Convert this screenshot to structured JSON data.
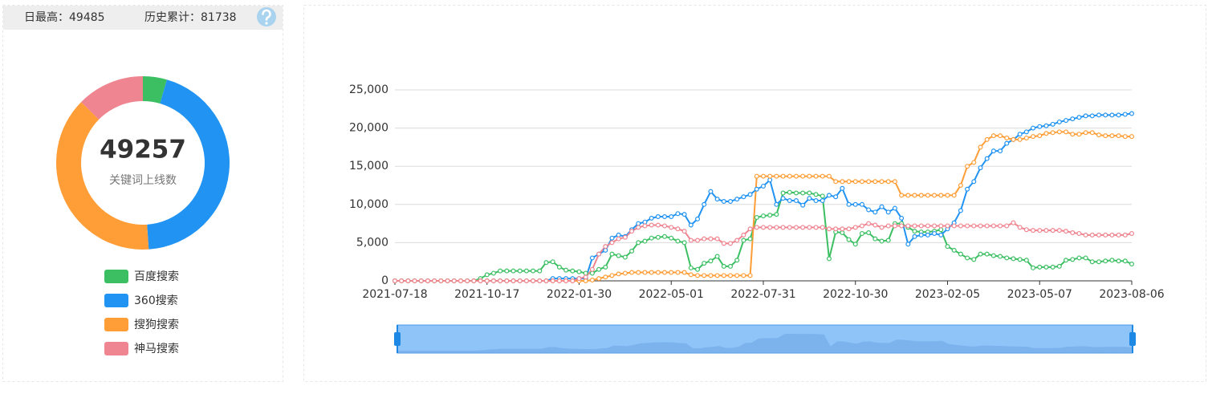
{
  "stats": [
    {
      "label": "日最高：",
      "value": 49485
    },
    {
      "label": "历史累计：",
      "value": 81738
    }
  ],
  "chart_data": [
    {
      "type": "pie",
      "donut": true,
      "center_value": 49257,
      "center_label": "关键词上线数",
      "categories": [
        "百度搜索",
        "360搜索",
        "搜狗搜索",
        "神马搜索"
      ],
      "values": [
        2200,
        21900,
        18950,
        6207
      ],
      "colors": [
        "#3cbf63",
        "#2193f2",
        "#ff9d36",
        "#ef8590"
      ]
    },
    {
      "type": "line",
      "categories": [
        "2021-07-18",
        null,
        null,
        null,
        null,
        null,
        null,
        null,
        null,
        null,
        null,
        null,
        null,
        null,
        "2021-10-17",
        null,
        null,
        null,
        null,
        null,
        null,
        null,
        null,
        null,
        null,
        null,
        null,
        null,
        "2022-01-30",
        null,
        null,
        null,
        null,
        null,
        null,
        null,
        null,
        null,
        null,
        null,
        null,
        null,
        "2022-05-01",
        null,
        null,
        null,
        null,
        null,
        null,
        null,
        null,
        null,
        null,
        null,
        null,
        null,
        "2022-07-31",
        null,
        null,
        null,
        null,
        null,
        null,
        null,
        null,
        null,
        null,
        null,
        null,
        null,
        "2022-10-30",
        null,
        null,
        null,
        null,
        null,
        null,
        null,
        null,
        null,
        null,
        null,
        null,
        null,
        "2023-02-05",
        null,
        null,
        null,
        null,
        null,
        null,
        null,
        null,
        null,
        null,
        null,
        null,
        null,
        "2023-05-07",
        null,
        null,
        null,
        null,
        null,
        null,
        null,
        null,
        null,
        null,
        null,
        null,
        null,
        "2023-08-06"
      ],
      "ylim": [
        0,
        25000
      ],
      "yticks": [
        0,
        {
          "value": 5000,
          "label": "5,000"
        },
        {
          "value": 10000,
          "label": "10,000"
        },
        {
          "value": 15000,
          "label": "15,000"
        },
        {
          "value": 20000,
          "label": "20,000"
        },
        {
          "value": 25000,
          "label": "25,000"
        }
      ],
      "grid": true,
      "series": [
        {
          "name": "百度搜索",
          "color": "#3cbf63",
          "values": [
            0,
            0,
            0,
            0,
            0,
            0,
            0,
            0,
            0,
            0,
            0,
            0,
            0,
            300,
            800,
            1000,
            1300,
            1300,
            1300,
            1300,
            1300,
            1300,
            1300,
            2400,
            2500,
            1800,
            1400,
            1300,
            1200,
            1000,
            1000,
            1500,
            1800,
            3500,
            3300,
            3100,
            3900,
            5000,
            5200,
            5600,
            5700,
            5800,
            5600,
            5200,
            5000,
            1700,
            1500,
            2300,
            2600,
            3200,
            1900,
            1900,
            2700,
            5300,
            5500,
            8300,
            8500,
            8600,
            8700,
            11500,
            11600,
            11500,
            11500,
            11500,
            11300,
            11100,
            2900,
            6400,
            6300,
            5400,
            4800,
            6200,
            6300,
            5500,
            5200,
            5300,
            7500,
            7500,
            7000,
            6500,
            6400,
            6400,
            6500,
            6700,
            4500,
            4000,
            3500,
            3000,
            2800,
            3500,
            3500,
            3300,
            3200,
            3000,
            2900,
            2800,
            2700,
            1700,
            1800,
            1800,
            1800,
            1900,
            2700,
            2800,
            3000,
            3000,
            2500,
            2500,
            2600,
            2700,
            2600,
            2600,
            2200
          ]
        },
        {
          "name": "360搜索",
          "color": "#2193f2",
          "values": [
            0,
            0,
            0,
            0,
            0,
            0,
            0,
            0,
            0,
            0,
            0,
            0,
            0,
            0,
            0,
            0,
            0,
            0,
            0,
            0,
            0,
            0,
            0,
            0,
            300,
            300,
            300,
            300,
            300,
            300,
            3000,
            3500,
            4000,
            5600,
            6000,
            5800,
            6700,
            7500,
            7700,
            8200,
            8400,
            8400,
            8400,
            8800,
            8700,
            7300,
            8100,
            10000,
            11700,
            10700,
            10400,
            10400,
            10700,
            11000,
            11300,
            12000,
            12400,
            13200,
            10000,
            10800,
            10500,
            10500,
            9900,
            10800,
            10500,
            10500,
            11200,
            11000,
            12100,
            10000,
            10000,
            10000,
            9300,
            9000,
            9700,
            9000,
            9500,
            8200,
            4800,
            5800,
            6000,
            6000,
            6200,
            6000,
            6800,
            7600,
            9200,
            12000,
            13000,
            14800,
            16000,
            17000,
            17000,
            18000,
            18500,
            19200,
            19500,
            20000,
            20200,
            20300,
            20500,
            20800,
            21000,
            21200,
            21400,
            21600,
            21600,
            21700,
            21700,
            21700,
            21700,
            21800,
            21900
          ]
        },
        {
          "name": "搜狗搜索",
          "color": "#ff9d36",
          "values": [
            0,
            0,
            0,
            0,
            0,
            0,
            0,
            0,
            0,
            0,
            0,
            0,
            0,
            0,
            0,
            0,
            0,
            0,
            0,
            0,
            0,
            0,
            0,
            0,
            0,
            0,
            0,
            0,
            0,
            0,
            100,
            300,
            500,
            700,
            900,
            1000,
            1100,
            1100,
            1100,
            1100,
            1100,
            1100,
            1100,
            1100,
            1100,
            800,
            700,
            700,
            700,
            700,
            700,
            700,
            700,
            700,
            700,
            13700,
            13700,
            13700,
            13700,
            13700,
            13700,
            13700,
            13700,
            13700,
            13700,
            13700,
            13700,
            13000,
            13000,
            13000,
            13000,
            13000,
            13000,
            13000,
            13000,
            13000,
            13000,
            11200,
            11200,
            11200,
            11200,
            11200,
            11200,
            11200,
            11200,
            11200,
            12500,
            15000,
            15500,
            17500,
            18500,
            19000,
            19000,
            18700,
            18500,
            18500,
            18700,
            18900,
            19000,
            19300,
            19400,
            19500,
            19500,
            19200,
            19200,
            19400,
            19400,
            19100,
            19000,
            19000,
            19000,
            18900,
            18900
          ]
        },
        {
          "name": "神马搜索",
          "color": "#ef8590",
          "values": [
            0,
            0,
            0,
            0,
            0,
            0,
            0,
            0,
            0,
            0,
            0,
            0,
            0,
            0,
            0,
            0,
            0,
            0,
            0,
            0,
            0,
            0,
            0,
            0,
            0,
            0,
            0,
            0,
            300,
            500,
            1500,
            3500,
            4500,
            5000,
            5500,
            5700,
            6500,
            7000,
            7200,
            7300,
            7300,
            7200,
            7000,
            6800,
            6500,
            5300,
            5300,
            5500,
            5500,
            5500,
            4900,
            4900,
            5300,
            6000,
            6800,
            7000,
            7000,
            7000,
            7000,
            7000,
            7000,
            7000,
            7000,
            7000,
            7000,
            7000,
            6800,
            6800,
            6800,
            6800,
            7000,
            7200,
            7500,
            7300,
            7000,
            7200,
            7200,
            7200,
            7200,
            7200,
            7200,
            7200,
            7200,
            7200,
            7200,
            7200,
            7200,
            7200,
            7200,
            7200,
            7200,
            7200,
            7200,
            7200,
            7600,
            7000,
            6700,
            6600,
            6600,
            6600,
            6600,
            6600,
            6500,
            6300,
            6200,
            6000,
            6000,
            6000,
            6000,
            6000,
            6000,
            6000,
            6200
          ]
        }
      ]
    }
  ]
}
